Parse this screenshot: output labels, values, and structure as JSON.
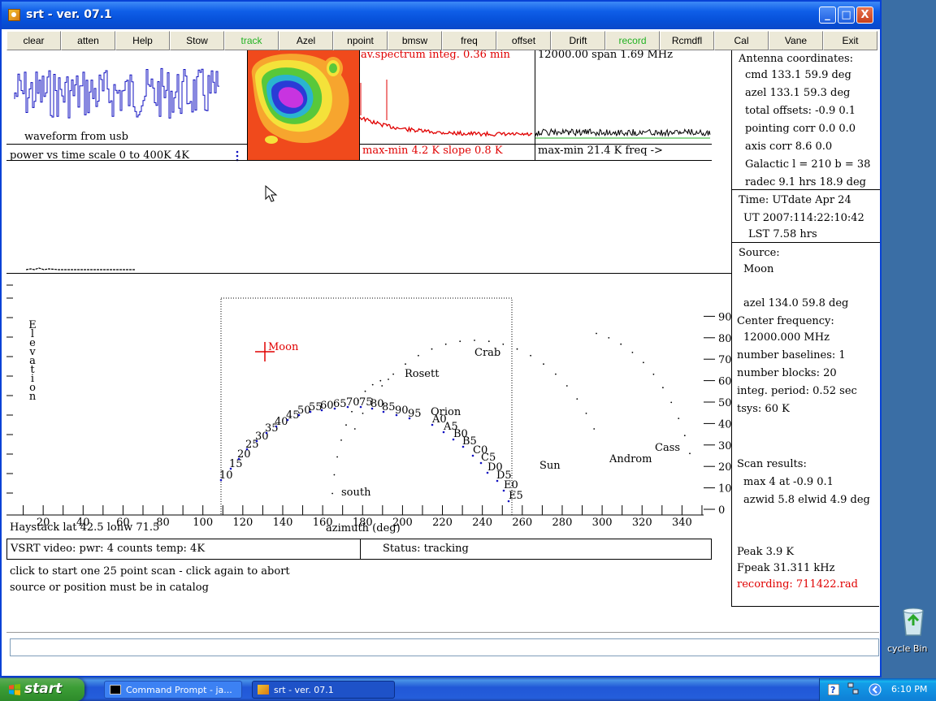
{
  "window": {
    "title": "srt - ver. 07.1",
    "controls": {
      "minimize": "_",
      "maximize": "□",
      "close": "X"
    }
  },
  "toolbar": [
    {
      "label": "clear",
      "color": "#000000"
    },
    {
      "label": "atten",
      "color": "#000000"
    },
    {
      "label": "Help",
      "color": "#000000"
    },
    {
      "label": "Stow",
      "color": "#000000"
    },
    {
      "label": "track",
      "color": "#22b222"
    },
    {
      "label": "Azel",
      "color": "#000000"
    },
    {
      "label": "npoint",
      "color": "#000000"
    },
    {
      "label": "bmsw",
      "color": "#000000"
    },
    {
      "label": "freq",
      "color": "#000000"
    },
    {
      "label": "offset",
      "color": "#000000"
    },
    {
      "label": "Drift",
      "color": "#000000"
    },
    {
      "label": "record",
      "color": "#22b222"
    },
    {
      "label": "Rcmdfl",
      "color": "#000000"
    },
    {
      "label": "Cal",
      "color": "#000000"
    },
    {
      "label": "Vane",
      "color": "#000000"
    },
    {
      "label": "Exit",
      "color": "#000000"
    }
  ],
  "waveform": {
    "label": "waveform from usb",
    "power_scale": "power vs time scale   0 to  400K   4K",
    "color": "#1010c0"
  },
  "avspec": {
    "title": "av.spectrum integ. 0.36 min",
    "footer": "max-min   4.2 K slope   0.8 K",
    "color": "#e00000"
  },
  "spec2": {
    "title": "12000.00 span   1.69 MHz",
    "footer": "max-min  21.4 K   freq ->"
  },
  "antenna": {
    "heading": "Antenna coordinates:",
    "cmd": "cmd 133.1  59.9 deg",
    "azel": "azel  133.1  59.3 deg",
    "total_offsets": "total offsets:   -0.9   0.1",
    "pointing_corr": "pointing corr  0.0  0.0",
    "axis_corr": "axis corr  8.6  0.0",
    "galactic": "Galactic l = 210  b = 38",
    "radec": "radec   9.1 hrs  18.9 deg"
  },
  "time": {
    "heading": "Time:     UTdate Apr 24",
    "ut": "UT 2007:114:22:10:42",
    "lst": "LST  7.58 hrs"
  },
  "source": {
    "heading": "Source:",
    "name": "Moon",
    "azel": "azel  134.0   59.8 deg",
    "center_freq_heading": "Center frequency:",
    "center_freq": "12000.000 MHz",
    "baselines": "number baselines: 1",
    "blocks": "number blocks: 20",
    "integ": "integ. period: 0.52 sec",
    "tsys": "tsys:    60 K"
  },
  "scan": {
    "heading": "Scan results:",
    "max": "max     4 at  -0.9   0.1",
    "widths": "azwid   5.8 elwid  4.9 deg"
  },
  "peak": {
    "peak": "Peak      3.9 K",
    "fpeak": "Fpeak    31.311 kHz",
    "recording": "recording: 711422.rad",
    "recording_color": "#e00000"
  },
  "sky": {
    "ylabel": [
      "E",
      "l",
      "e",
      "v",
      "a",
      "t",
      "i",
      "o",
      "n"
    ],
    "xlabel": "azimuth (deg)",
    "location": "Haystack lat 42.5 lonw 71.5",
    "x_ticks": [
      "20",
      "40",
      "60",
      "80",
      "100",
      "120",
      "140",
      "160",
      "180",
      "200",
      "220",
      "240",
      "260",
      "280",
      "300",
      "320",
      "340"
    ],
    "y_ticks": [
      "0",
      "10",
      "20",
      "30",
      "40",
      "50",
      "60",
      "70",
      "80",
      "90"
    ],
    "labels": {
      "moon": "Moon",
      "crab": "Crab",
      "rosett": "Rosett",
      "orion": "Orion",
      "sun": "Sun",
      "androm": "Androm",
      "cass": "Cass",
      "south": "south",
      "a0": "A0",
      "a5": "A5",
      "b0": "B0",
      "b5": "B5",
      "c0": "C0",
      "c5": "C5",
      "d0": "D0",
      "d5": "D5",
      "e0": "E0",
      "e5": "E5"
    },
    "galactic_numbers": [
      "10",
      "15",
      "20",
      "25",
      "30",
      "35",
      "40",
      "45",
      "50",
      "55",
      "60",
      "65",
      "70",
      "75",
      "80",
      "85",
      "90",
      "95"
    ]
  },
  "status": {
    "video": "VSRT video:  pwr:   4 counts temp:   4K",
    "tracking": "Status: tracking"
  },
  "messages": {
    "line1": "click to start one 25 point scan - click again to abort",
    "line2": "source or position must be in catalog"
  },
  "taskbar": {
    "start": "start",
    "items": [
      "Command Prompt - ja...",
      "srt - ver. 07.1"
    ],
    "clock": "6:10 PM"
  },
  "desktop": {
    "recycle_label": "cycle Bin"
  }
}
